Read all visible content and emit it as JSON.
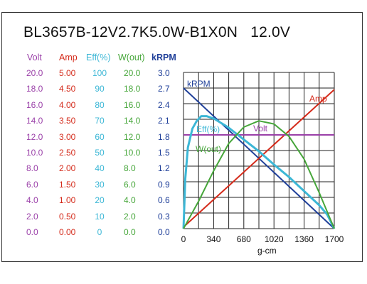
{
  "title": "BL3657B-12V2.7K5.0W-B1X0N   12.0V",
  "axes": [
    {
      "key": "volt",
      "header": "Volt",
      "color": "#9a3fa8",
      "ticks": [
        "20.0",
        "18.0",
        "16.0",
        "14.0",
        "12.0",
        "10.0",
        "8.0",
        "6.0",
        "4.0",
        "2.0",
        "0.0"
      ]
    },
    {
      "key": "amp",
      "header": "Amp",
      "color": "#d42a1a",
      "ticks": [
        "5.00",
        "4.50",
        "4.00",
        "3.50",
        "3.00",
        "2.50",
        "2.00",
        "1.50",
        "1.00",
        "0.50",
        "0.00"
      ]
    },
    {
      "key": "eff",
      "header": "Eff(%)",
      "color": "#3cb7d6",
      "ticks": [
        "100",
        "90",
        "80",
        "70",
        "60",
        "50",
        "40",
        "30",
        "20",
        "10",
        "0"
      ]
    },
    {
      "key": "wout",
      "header": "W(out)",
      "color": "#46a63a",
      "ticks": [
        "20.0",
        "18.0",
        "16.0",
        "14.0",
        "12.0",
        "10.0",
        "8.0",
        "6.0",
        "4.0",
        "2.0",
        "0.0"
      ]
    },
    {
      "key": "krpm",
      "header": "kRPM",
      "color": "#1f3f99",
      "ticks": [
        "3.0",
        "2.7",
        "2.4",
        "2.1",
        "1.8",
        "1.5",
        "1.2",
        "0.9",
        "0.6",
        "0.3",
        "0.0"
      ]
    }
  ],
  "chart_data": {
    "type": "line",
    "xlabel": "g-cm",
    "x_ticks": [
      "0",
      "340",
      "680",
      "1020",
      "1360",
      "1700"
    ],
    "xlim": [
      0,
      1700
    ],
    "grid": true,
    "series": [
      {
        "name": "kRPM",
        "label": "kRPM",
        "color": "#1f3f99",
        "ylim": [
          0,
          3.0
        ],
        "x": [
          0,
          1700
        ],
        "y": [
          2.7,
          0.0
        ]
      },
      {
        "name": "Amp",
        "label": "Amp",
        "color": "#d42a1a",
        "ylim": [
          0,
          5.0
        ],
        "x": [
          0,
          1700
        ],
        "y": [
          0.05,
          4.45
        ]
      },
      {
        "name": "Volt",
        "label": "Volt",
        "color": "#9a3fa8",
        "ylim": [
          0,
          20.0
        ],
        "x": [
          0,
          1700
        ],
        "y": [
          12.0,
          12.0
        ]
      },
      {
        "name": "Eff(%)",
        "label": "Eff(%)",
        "color": "#3cb7d6",
        "ylim": [
          0,
          100
        ],
        "x": [
          0,
          20,
          50,
          100,
          150,
          200,
          260,
          340,
          500,
          680,
          850,
          1020,
          1190,
          1360,
          1530,
          1620,
          1700
        ],
        "y": [
          0,
          32,
          52,
          64,
          69,
          72,
          72,
          70.5,
          65,
          57,
          49.5,
          41,
          33,
          24,
          15,
          9,
          0
        ]
      },
      {
        "name": "W(out)",
        "label": "W(out)",
        "color": "#46a63a",
        "ylim": [
          0,
          20.0
        ],
        "x": [
          0,
          170,
          340,
          510,
          680,
          850,
          1020,
          1190,
          1360,
          1530,
          1700
        ],
        "y": [
          0,
          3.5,
          7.4,
          10.9,
          13.0,
          13.8,
          13.4,
          11.8,
          8.9,
          4.6,
          0
        ]
      }
    ]
  }
}
